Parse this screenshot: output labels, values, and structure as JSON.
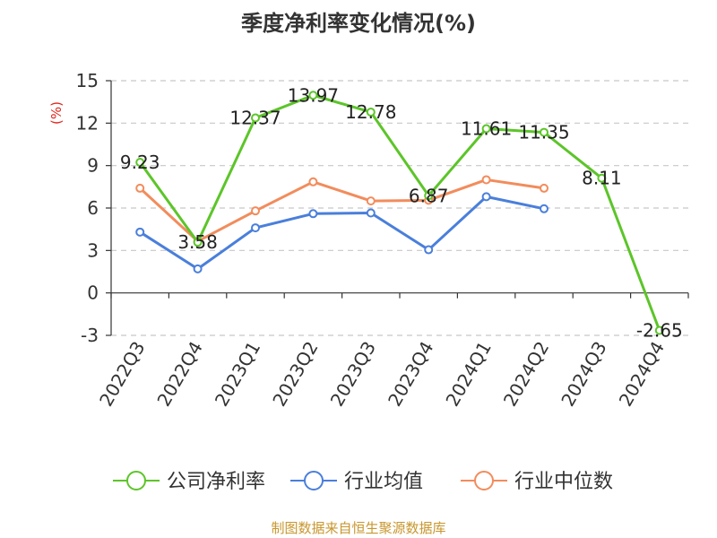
{
  "chart_data": {
    "type": "line",
    "title": "季度净利率变化情况(%)",
    "ylabel": "(%)",
    "categories": [
      "2022Q3",
      "2022Q4",
      "2023Q1",
      "2023Q2",
      "2023Q3",
      "2023Q4",
      "2024Q1",
      "2024Q2",
      "2024Q3",
      "2024Q4"
    ],
    "ylim": [
      -3,
      15
    ],
    "yticks": [
      -3,
      0,
      3,
      6,
      9,
      12,
      15
    ],
    "ytick_labels": [
      "-3",
      "0",
      "3",
      "6",
      "9",
      "12",
      "15"
    ],
    "grid": true,
    "legend_position": "bottom",
    "series": [
      {
        "name": "公司净利率",
        "color": "#5CC529",
        "values": [
          9.23,
          3.58,
          12.37,
          13.97,
          12.78,
          6.87,
          11.61,
          11.35,
          8.11,
          -2.65
        ],
        "labels": [
          "9.23",
          "3.58",
          "12.37",
          "13.97",
          "12.78",
          "6.87",
          "11.61",
          "11.35",
          "8.11",
          "-2.65"
        ]
      },
      {
        "name": "行业均值",
        "color": "#4A7FDB",
        "values": [
          4.3,
          1.7,
          4.6,
          5.6,
          5.65,
          3.05,
          6.8,
          5.95,
          null,
          null
        ]
      },
      {
        "name": "行业中位数",
        "color": "#F28C5C",
        "values": [
          7.4,
          3.65,
          5.8,
          7.85,
          6.5,
          6.55,
          8.0,
          7.4,
          null,
          null
        ]
      }
    ]
  },
  "source": "制图数据来自恒生聚源数据库",
  "colors": {
    "axis": "#333333",
    "grid": "#c8c8c8",
    "ylabel": "#e0241b",
    "source": "#c8962d"
  }
}
